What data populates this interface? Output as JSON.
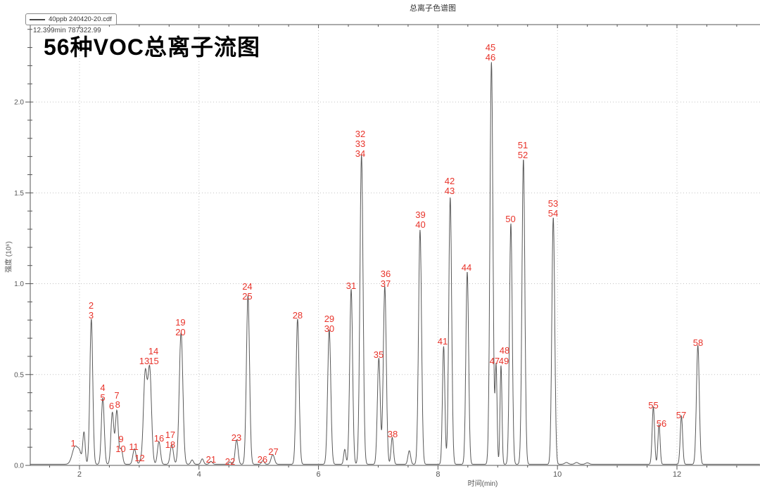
{
  "window": {
    "title": "总离子色谱图"
  },
  "overlay": {
    "heading": "56种VOC总离子流图",
    "cursor_readout": "12.399min 787322.99"
  },
  "legend": {
    "series_label": "40ppb 240420-20.cdf"
  },
  "colors": {
    "trace": "#595959",
    "axis": "#555555",
    "grid": "#c3c3c3",
    "tick_label": "#555555",
    "peak_label": "#e8332a"
  },
  "chart_data": {
    "type": "line",
    "title": "总离子色谱图",
    "xlabel": "时间(min)",
    "ylabel": "强度 (10⁶)",
    "xlim": [
      1.176,
      13.39
    ],
    "ylim": [
      0,
      2.426
    ],
    "x_major_ticks": [
      2,
      4,
      6,
      8,
      10,
      12
    ],
    "x_minor_step": 0.5,
    "y_major_ticks": [
      0,
      0.5,
      1.0,
      1.5,
      2.0
    ],
    "y_minor_step": 0.1,
    "grid": "dotted-at-major-ticks",
    "legend_position": "top-left",
    "series": [
      {
        "name": "40ppb 240420-20.cdf",
        "baseline": 0.006,
        "peaks_t_height_sigma": [
          [
            1.93,
            0.1,
            0.05
          ],
          [
            2.005,
            0.045,
            0.028
          ],
          [
            2.075,
            0.175,
            0.02
          ],
          [
            2.198,
            0.8,
            0.024
          ],
          [
            2.39,
            0.365,
            0.024
          ],
          [
            2.55,
            0.285,
            0.024
          ],
          [
            2.625,
            0.295,
            0.024
          ],
          [
            2.698,
            0.085,
            0.024
          ],
          [
            2.92,
            0.085,
            0.026
          ],
          [
            3.02,
            0.016,
            0.018
          ],
          [
            3.1,
            0.5,
            0.03
          ],
          [
            3.175,
            0.52,
            0.03
          ],
          [
            3.33,
            0.125,
            0.025
          ],
          [
            3.545,
            0.108,
            0.026
          ],
          [
            3.7,
            0.725,
            0.03
          ],
          [
            3.885,
            0.024,
            0.022
          ],
          [
            4.055,
            0.03,
            0.022
          ],
          [
            4.2,
            0.016,
            0.025
          ],
          [
            4.52,
            0.013,
            0.022
          ],
          [
            4.63,
            0.135,
            0.024
          ],
          [
            4.82,
            0.93,
            0.026
          ],
          [
            5.07,
            0.02,
            0.022
          ],
          [
            5.235,
            0.053,
            0.028
          ],
          [
            5.65,
            0.8,
            0.025
          ],
          [
            6.18,
            0.74,
            0.026
          ],
          [
            6.44,
            0.082,
            0.018
          ],
          [
            6.547,
            0.965,
            0.024
          ],
          [
            6.72,
            1.705,
            0.026
          ],
          [
            7.01,
            0.585,
            0.024
          ],
          [
            7.11,
            0.98,
            0.025
          ],
          [
            7.235,
            0.148,
            0.02
          ],
          [
            7.52,
            0.075,
            0.022
          ],
          [
            7.7,
            1.29,
            0.025
          ],
          [
            8.095,
            0.65,
            0.02
          ],
          [
            8.205,
            1.47,
            0.024
          ],
          [
            8.49,
            1.06,
            0.023
          ],
          [
            8.895,
            2.215,
            0.025
          ],
          [
            8.973,
            0.54,
            0.016
          ],
          [
            9.055,
            0.545,
            0.016
          ],
          [
            9.22,
            1.325,
            0.023
          ],
          [
            9.43,
            1.68,
            0.024
          ],
          [
            9.93,
            1.36,
            0.024
          ],
          [
            10.15,
            0.01,
            0.03
          ],
          [
            10.32,
            0.01,
            0.03
          ],
          [
            10.5,
            0.008,
            0.03
          ],
          [
            11.605,
            0.315,
            0.02
          ],
          [
            11.7,
            0.22,
            0.018
          ],
          [
            12.075,
            0.265,
            0.02
          ],
          [
            12.35,
            0.655,
            0.024
          ]
        ]
      }
    ],
    "peak_labels": [
      {
        "lines": [
          "1"
        ],
        "t": 1.894,
        "v": 0.104
      },
      {
        "lines": [
          "2",
          "3"
        ],
        "t": 2.194,
        "v": 0.808
      },
      {
        "lines": [
          "4",
          "5"
        ],
        "t": 2.389,
        "v": 0.356
      },
      {
        "lines": [
          "6"
        ],
        "t": 2.536,
        "v": 0.309
      },
      {
        "lines": [
          "7"
        ],
        "t": 2.624,
        "v": 0.368
      },
      {
        "lines": [
          "8"
        ],
        "t": 2.64,
        "v": 0.317
      },
      {
        "lines": [
          "9"
        ],
        "t": 2.695,
        "v": 0.128
      },
      {
        "lines": [
          "10"
        ],
        "t": 2.689,
        "v": 0.074
      },
      {
        "lines": [
          "11"
        ],
        "t": 2.907,
        "v": 0.085
      },
      {
        "lines": [
          "12"
        ],
        "t": 3.007,
        "v": 0.023
      },
      {
        "lines": [
          "13"
        ],
        "t": 3.084,
        "v": 0.557
      },
      {
        "lines": [
          "14"
        ],
        "t": 3.237,
        "v": 0.611
      },
      {
        "lines": [
          "15"
        ],
        "t": 3.243,
        "v": 0.557
      },
      {
        "lines": [
          "16"
        ],
        "t": 3.331,
        "v": 0.132
      },
      {
        "lines": [
          "17",
          "18"
        ],
        "t": 3.519,
        "v": 0.097
      },
      {
        "lines": [
          "19",
          "20"
        ],
        "t": 3.69,
        "v": 0.716
      },
      {
        "lines": [
          "21"
        ],
        "t": 4.202,
        "v": 0.015
      },
      {
        "lines": [
          "22"
        ],
        "t": 4.521,
        "v": 0.004
      },
      {
        "lines": [
          "23"
        ],
        "t": 4.627,
        "v": 0.135
      },
      {
        "lines": [
          "24",
          "25"
        ],
        "t": 4.809,
        "v": 0.913
      },
      {
        "lines": [
          "26"
        ],
        "t": 5.062,
        "v": 0.015
      },
      {
        "lines": [
          "27"
        ],
        "t": 5.245,
        "v": 0.058
      },
      {
        "lines": [
          "28"
        ],
        "t": 5.651,
        "v": 0.808
      },
      {
        "lines": [
          "29",
          "30"
        ],
        "t": 6.181,
        "v": 0.735
      },
      {
        "lines": [
          "31"
        ],
        "t": 6.547,
        "v": 0.971
      },
      {
        "lines": [
          "32",
          "33",
          "34"
        ],
        "t": 6.7,
        "v": 1.698
      },
      {
        "lines": [
          "35"
        ],
        "t": 7.006,
        "v": 0.592
      },
      {
        "lines": [
          "36",
          "37"
        ],
        "t": 7.124,
        "v": 0.982
      },
      {
        "lines": [
          "38"
        ],
        "t": 7.242,
        "v": 0.155
      },
      {
        "lines": [
          "39",
          "40"
        ],
        "t": 7.707,
        "v": 1.307
      },
      {
        "lines": [
          "41"
        ],
        "t": 8.078,
        "v": 0.665
      },
      {
        "lines": [
          "42",
          "43"
        ],
        "t": 8.196,
        "v": 1.493
      },
      {
        "lines": [
          "44"
        ],
        "t": 8.478,
        "v": 1.071
      },
      {
        "lines": [
          "45",
          "46"
        ],
        "t": 8.879,
        "v": 2.228
      },
      {
        "lines": [
          "47"
        ],
        "t": 8.949,
        "v": 0.557
      },
      {
        "lines": [
          "48"
        ],
        "t": 9.114,
        "v": 0.615
      },
      {
        "lines": [
          "49"
        ],
        "t": 9.103,
        "v": 0.557
      },
      {
        "lines": [
          "50"
        ],
        "t": 9.215,
        "v": 1.338
      },
      {
        "lines": [
          "51",
          "52"
        ],
        "t": 9.421,
        "v": 1.69
      },
      {
        "lines": [
          "53",
          "54"
        ],
        "t": 9.927,
        "v": 1.369
      },
      {
        "lines": [
          "55"
        ],
        "t": 11.606,
        "v": 0.313
      },
      {
        "lines": [
          "56"
        ],
        "t": 11.741,
        "v": 0.213
      },
      {
        "lines": [
          "57"
        ],
        "t": 12.071,
        "v": 0.259
      },
      {
        "lines": [
          "58"
        ],
        "t": 12.354,
        "v": 0.658
      }
    ]
  }
}
